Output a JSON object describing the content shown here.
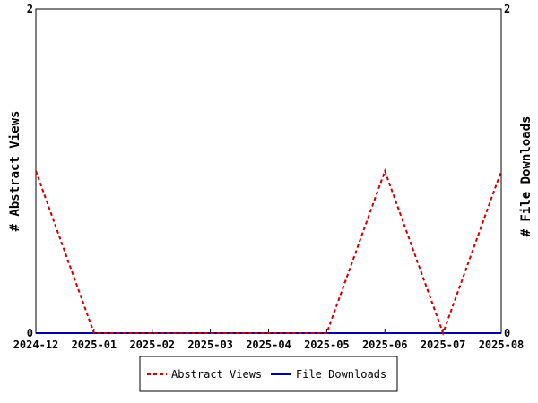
{
  "chart_data": {
    "type": "line",
    "x": [
      "2024-12",
      "2025-01",
      "2025-02",
      "2025-03",
      "2025-04",
      "2025-05",
      "2025-06",
      "2025-07",
      "2025-08"
    ],
    "series": [
      {
        "name": "Abstract Views",
        "values": [
          1,
          0,
          0,
          0,
          0,
          0,
          1,
          0,
          1
        ],
        "color": "#cc0000",
        "dash": "dashed",
        "axis": "left"
      },
      {
        "name": "File Downloads",
        "values": [
          0,
          0,
          0,
          0,
          0,
          0,
          0,
          0,
          0
        ],
        "color": "#000099",
        "dash": "solid",
        "axis": "right"
      }
    ],
    "ylabel_left": "# Abstract Views",
    "ylabel_right": "# File Downloads",
    "ylim_left": [
      0,
      2
    ],
    "ylim_right": [
      0,
      2
    ],
    "yticks_left": [
      "0",
      "2"
    ],
    "yticks_right": [
      "0",
      "2"
    ],
    "grid": false,
    "legend_placement": "bottom"
  }
}
